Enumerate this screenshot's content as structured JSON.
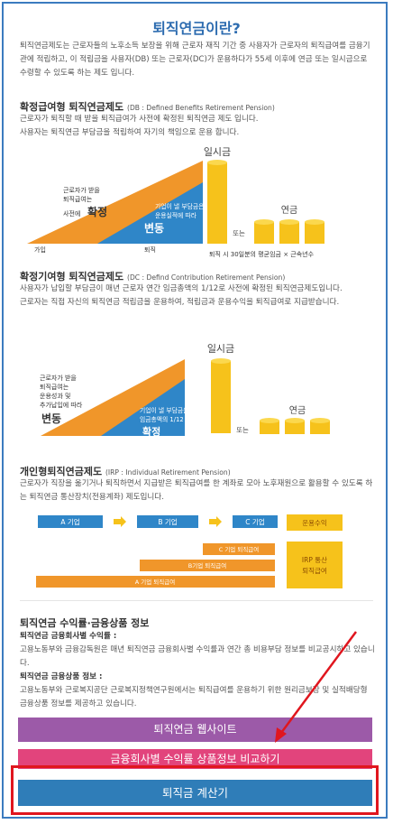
{
  "title": "퇴직연금이란?",
  "intro": "퇴직연금제도는 근로자들의 노후소득 보장을 위해 근로자 재직 기간 중 사용자가 근로자의 퇴직급여를 금융기관에 적립하고, 이 적립금을 사용자(DB) 또는 근로자(DC)가 운용하다가 55세 이후에 연금 또는 일시금으로 수령할 수 있도록 하는 제도 입니다.",
  "db": {
    "heading": "확정급여형 퇴직연금제도",
    "subheading": "(DB : Defined Benefits Retirement Pension)",
    "body": [
      "근로자가 퇴직할 때 받을 퇴직급여가 사전에 확정된 퇴직연금 제도 입니다.",
      "사용자는 퇴직연금 부담금을 적립하여 자기의 책임으로 운용 합니다."
    ],
    "diagram": {
      "lump_sum": "일시금",
      "annuity": "연금",
      "or": "또는",
      "worker_label": [
        "근로자가 받을",
        "퇴직급여는",
        "사전에"
      ],
      "worker_state": "확정",
      "employer_label": [
        "기업이 낼 부담금은",
        "운용실적에 따라"
      ],
      "employer_state": "변동",
      "join": "가입",
      "retire": "퇴직",
      "formula": "퇴직 시 30일분의 평균임금 × 근속년수"
    }
  },
  "dc": {
    "heading": "확정기여형 퇴직연금제도",
    "subheading": "(DC : Defind Contribution Retirement Pension)",
    "body": [
      "사용자가 납입할 부담금이 매년 근로자 연간 임금총액의 1/12로 사전에 확정된 퇴직연금제도입니다.",
      "근로자는 직접 자신의 퇴직연금 적립금을 운용하여, 적립금과 운용수익을 퇴직급여로 지급받습니다."
    ],
    "diagram": {
      "lump_sum": "일시금",
      "annuity": "연금",
      "or": "또는",
      "worker_label": [
        "근로자가 받을",
        "퇴직급여는",
        "운용성과 및",
        "추가납입에 따라"
      ],
      "worker_state": "변동",
      "employer_label": [
        "기업이 낼 부담금은",
        "임금총액의 1/12"
      ],
      "employer_state": "확정"
    }
  },
  "irp": {
    "heading": "개인형퇴직연금제도",
    "subheading": "(IRP : Individual Retirement Pension)",
    "body": "근로자가 직장을 옮기거나 퇴직하면서 지급받은 퇴직급여를 한 계좌로 모아 노후재원으로 활용할 수 있도록 하는 퇴직연금 통산장치(전용계좌) 제도입니다.",
    "diagram": {
      "companies": [
        "A 기업",
        "B 기업",
        "C 기업"
      ],
      "returns": "운용수익",
      "payouts": [
        "C 기업 퇴직급여",
        "B기업 퇴직급여",
        "A 기업 퇴직급여"
      ],
      "total": [
        "IRP 통산",
        "퇴직급여"
      ]
    }
  },
  "info": {
    "heading": "퇴직연금 수익률·금융상품 정보",
    "items": [
      {
        "label": "퇴직연금 금융회사별 수익률 :",
        "text": "고용노동부와 금융감독원은 매년 퇴직연금 금융회사별 수익률과 연간 총 비용부담 정보를 비교공시하고 있습니다."
      },
      {
        "label": "퇴직연금 금융상품 정보 :",
        "text": "고용노동부와 근로복지공단 근로복지정책연구원에서는 퇴직급여를 운용하기 위한 원리금보장 및 실적배당형 금융상품 정보를 제공하고 있습니다."
      }
    ]
  },
  "buttons": [
    "퇴직연금 웹사이트",
    "금융회사별 수익률 상품정보 비교하기",
    "퇴직금 계산기"
  ]
}
